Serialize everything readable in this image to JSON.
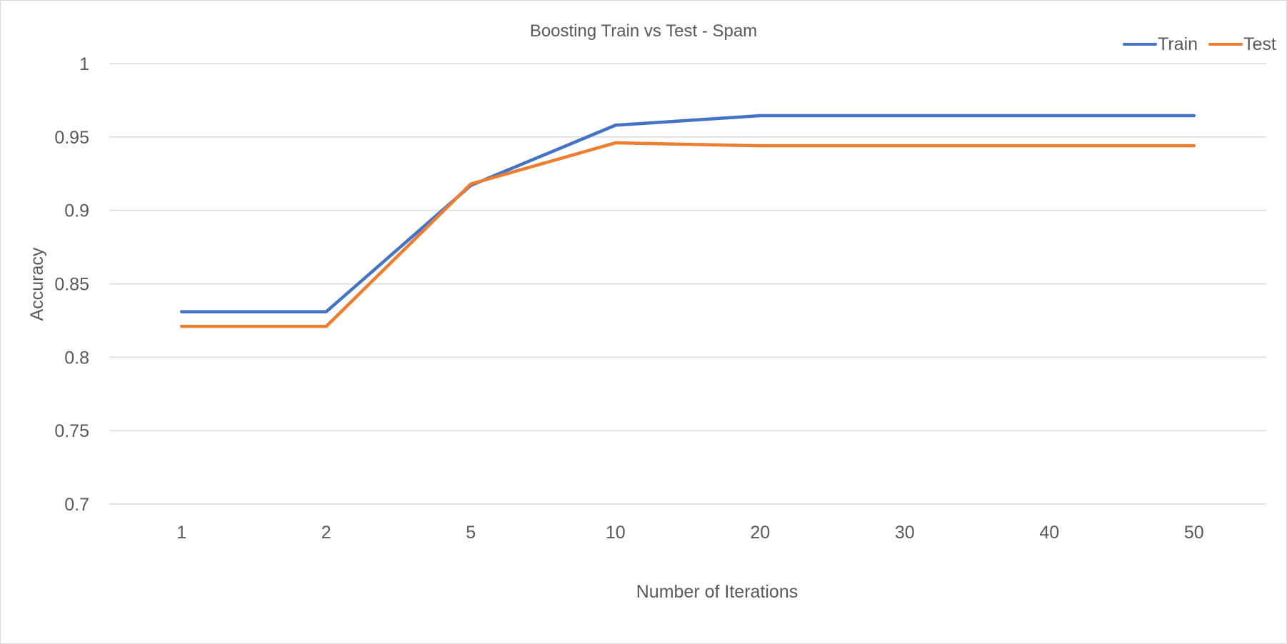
{
  "chart_data": {
    "type": "line",
    "title": "Boosting Train vs Test - Spam",
    "xlabel": "Number of Iterations",
    "ylabel": "Accuracy",
    "categories": [
      "1",
      "2",
      "5",
      "10",
      "20",
      "30",
      "40",
      "50"
    ],
    "ylim": [
      0.7,
      1
    ],
    "yticks": [
      "0.7",
      "0.75",
      "0.8",
      "0.85",
      "0.9",
      "0.95",
      "1"
    ],
    "grid": true,
    "legend_position": "top-right",
    "series": [
      {
        "name": "Train",
        "color": "#4472C4",
        "values": [
          0.831,
          0.831,
          0.917,
          0.958,
          0.9645,
          0.9645,
          0.9645,
          0.9645
        ]
      },
      {
        "name": "Test",
        "color": "#ED7D31",
        "values": [
          0.821,
          0.821,
          0.918,
          0.946,
          0.944,
          0.944,
          0.944,
          0.944
        ]
      }
    ]
  }
}
